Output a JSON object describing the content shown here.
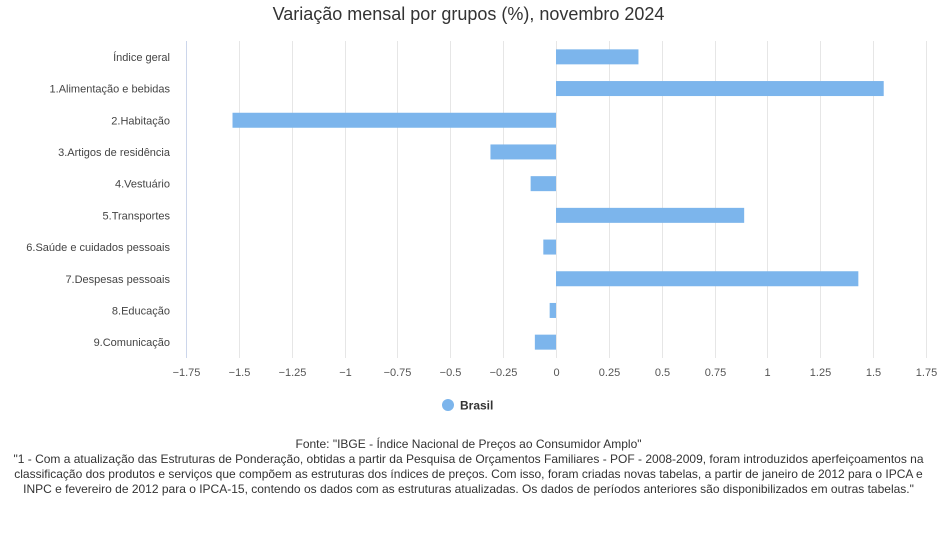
{
  "chart_data": {
    "type": "bar",
    "orientation": "horizontal",
    "title": "Variação mensal por grupos (%), novembro 2024",
    "categories": [
      "Índice geral",
      "1.Alimentação e bebidas",
      "2.Habitação",
      "3.Artigos de residência",
      "4.Vestuário",
      "5.Transportes",
      "6.Saúde e cuidados pessoais",
      "7.Despesas pessoais",
      "8.Educação",
      "9.Comunicação"
    ],
    "series": [
      {
        "name": "Brasil",
        "color": "#7cb5ec",
        "values": [
          0.39,
          1.55,
          -1.53,
          -0.31,
          -0.12,
          0.89,
          -0.06,
          1.43,
          -0.03,
          -0.1
        ]
      }
    ],
    "xlim": [
      -1.75,
      1.75
    ],
    "xticks": [
      -1.75,
      -1.5,
      -1.25,
      -1,
      -0.75,
      -0.5,
      -0.25,
      0,
      0.25,
      0.5,
      0.75,
      1,
      1.25,
      1.5,
      1.75
    ],
    "xtick_labels": [
      "−1.75",
      "−1.5",
      "−1.25",
      "−1",
      "−0.75",
      "−0.5",
      "−0.25",
      "0",
      "0.25",
      "0.5",
      "0.75",
      "1",
      "1.25",
      "1.5",
      "1.75"
    ],
    "grid": true,
    "legend_position": "bottom-center"
  },
  "footer": {
    "source": "Fonte: \"IBGE - Índice Nacional de Preços ao Consumidor Amplo\"",
    "note": "\"1 - Com a atualização das Estruturas de Ponderação, obtidas a partir da Pesquisa de Orçamentos Familiares - POF - 2008-2009, foram introduzidos aperfeiçoamentos na classificação dos produtos e serviços que compõem as estruturas dos índices de preços. Com isso, foram criadas novas tabelas, a partir de janeiro de 2012 para o IPCA e INPC e fevereiro de 2012 para o IPCA-15, contendo os dados com as estruturas atualizadas. Os dados de períodos anteriores são disponibilizados em outras tabelas.\""
  }
}
